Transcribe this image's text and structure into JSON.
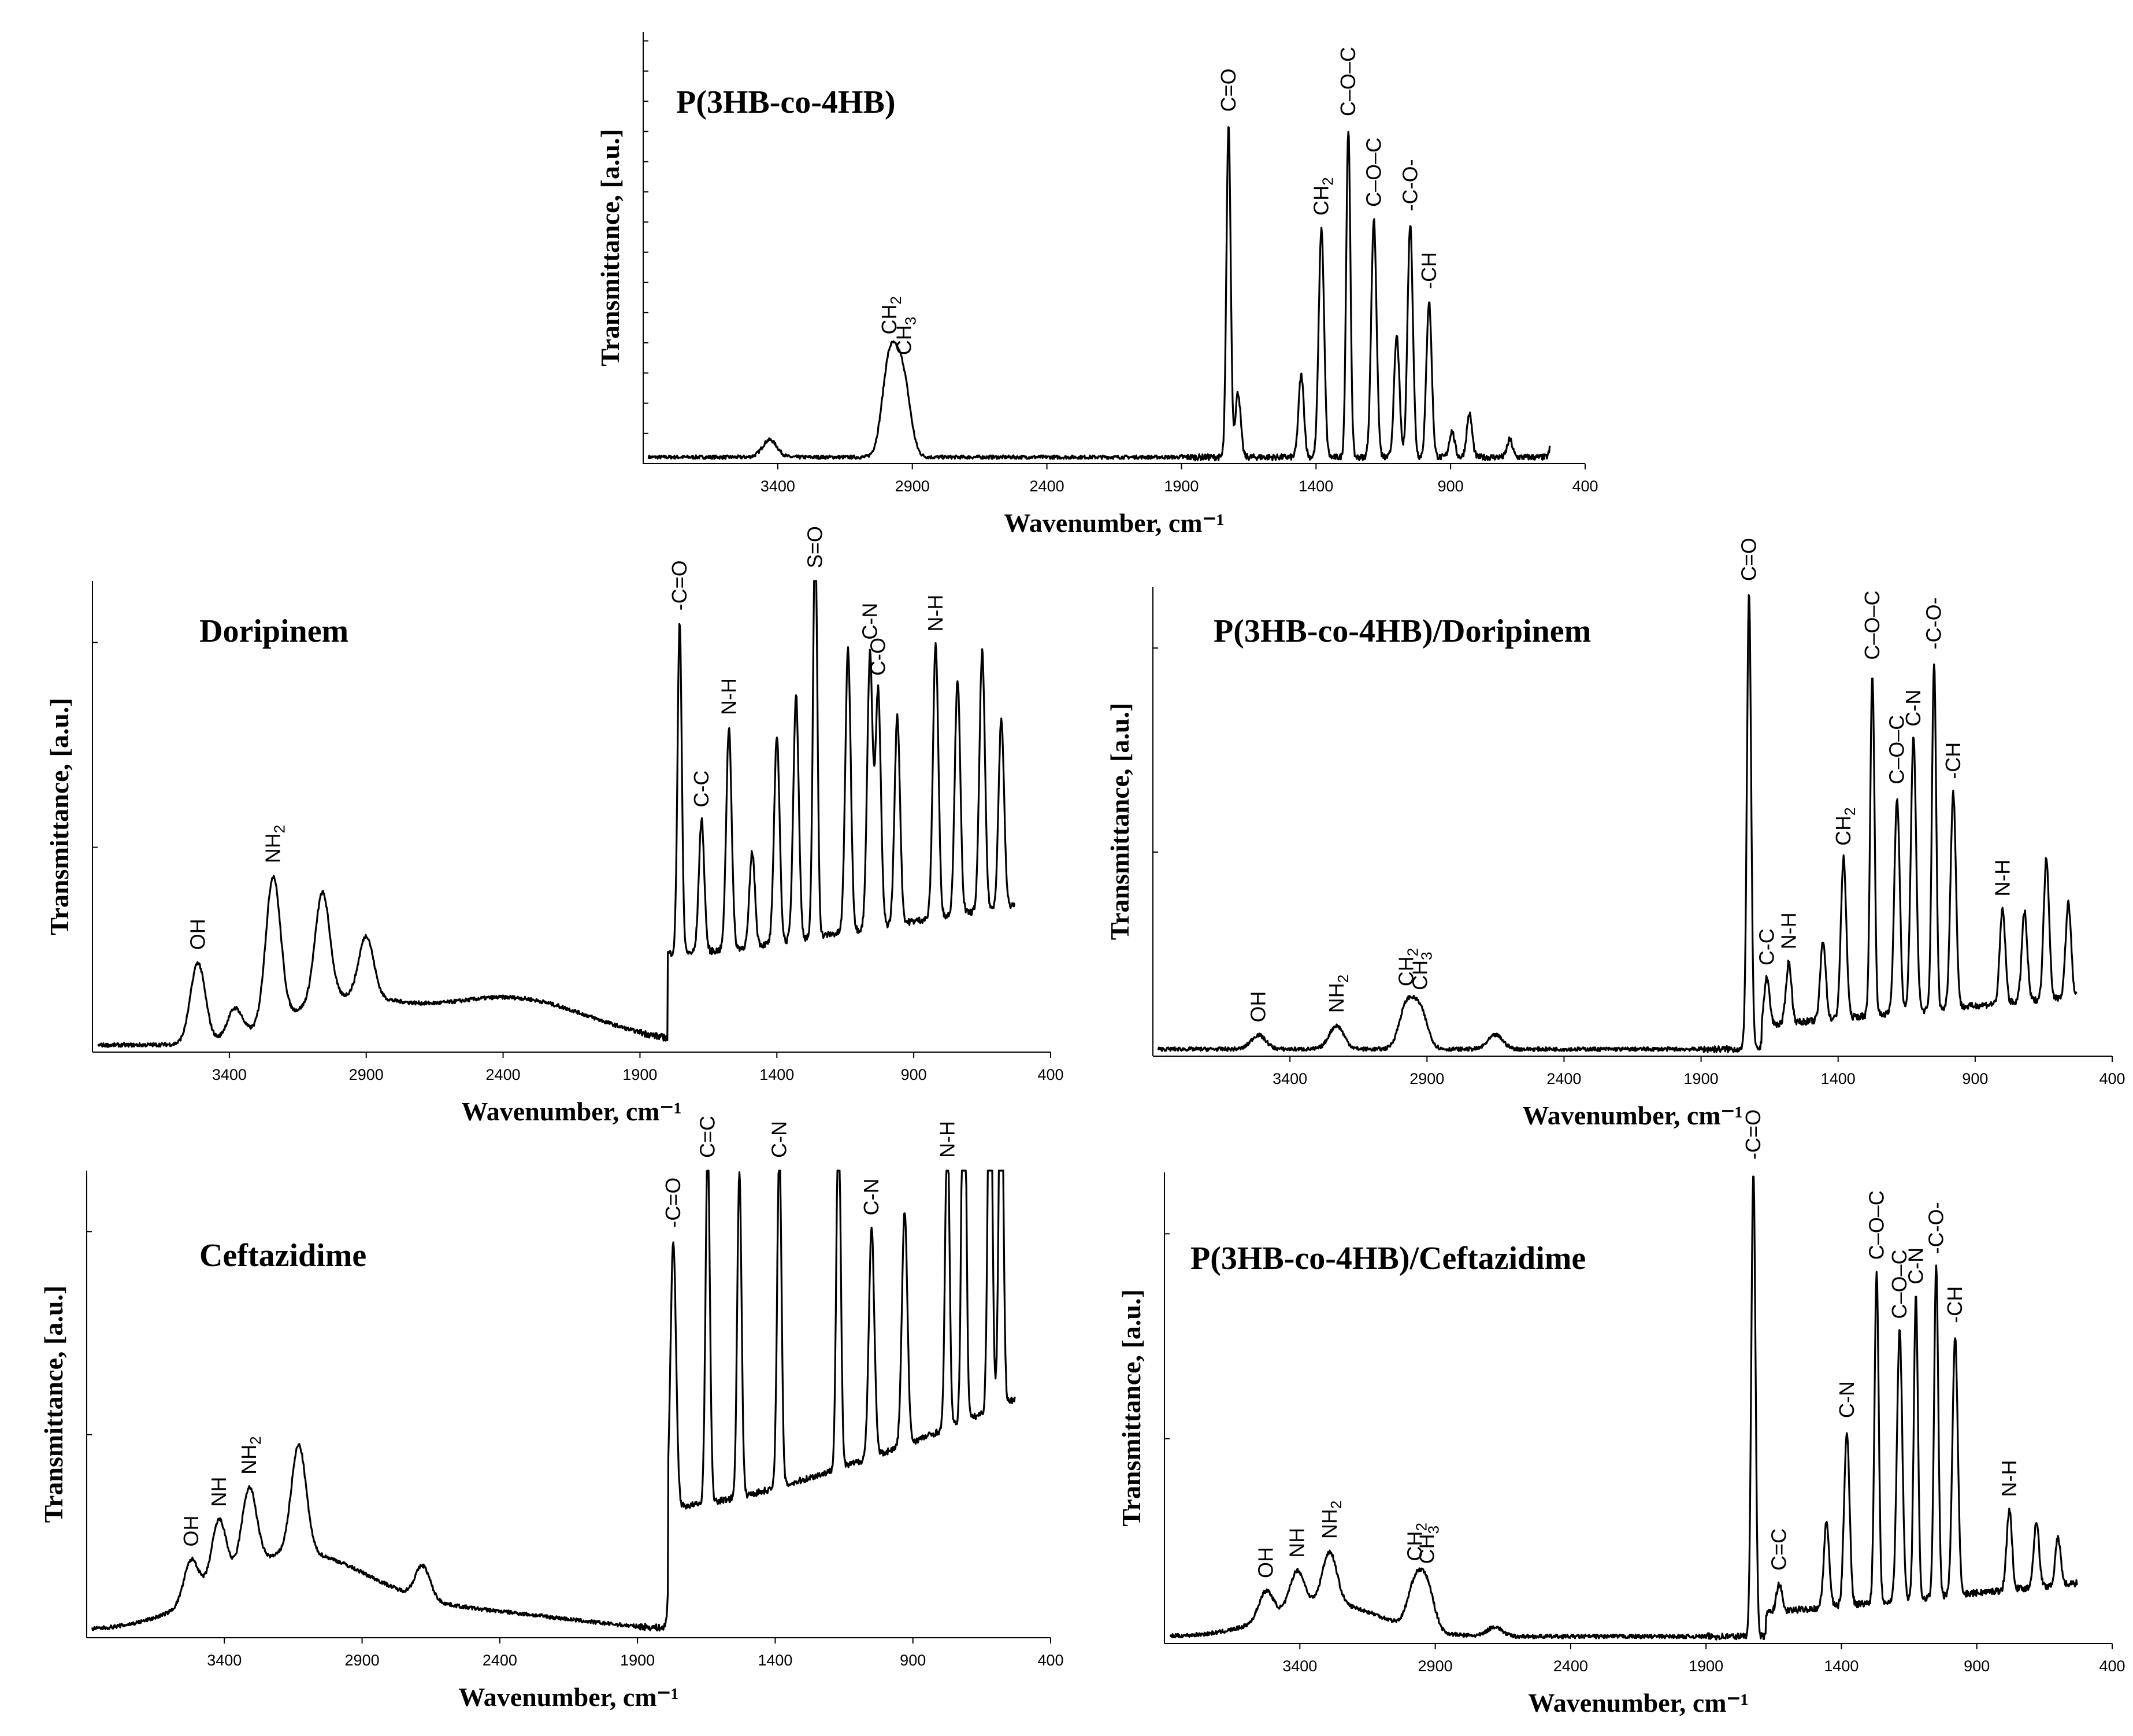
{
  "chart_data": [
    {
      "type": "line",
      "title": "P(3HB-co-4HB)",
      "xlabel": "Wavenumber, cm⁻¹",
      "ylabel": "Transmittance, [a.u.]",
      "xlim": [
        3900,
        400
      ],
      "ylim": [
        0,
        1
      ],
      "xticks": [
        "3400",
        "2900",
        "2400",
        "1900",
        "1400",
        "900",
        "400"
      ],
      "grid": false,
      "peaks": [
        {
          "x": 3430,
          "y": 0.04
        },
        {
          "x": 2985,
          "y": 0.22
        },
        {
          "x": 2935,
          "y": 0.18
        },
        {
          "x": 1725,
          "y": 0.77,
          "label": "C=O"
        },
        {
          "x": 1690,
          "y": 0.15
        },
        {
          "x": 1455,
          "y": 0.19
        },
        {
          "x": 1380,
          "y": 0.53,
          "label": "CH2"
        },
        {
          "x": 1280,
          "y": 0.76,
          "label": "C–O–C"
        },
        {
          "x": 1185,
          "y": 0.55,
          "label": "C–O–C"
        },
        {
          "x": 1100,
          "y": 0.28
        },
        {
          "x": 1050,
          "y": 0.54,
          "label": "-C-O-"
        },
        {
          "x": 980,
          "y": 0.36,
          "label": "-CH"
        },
        {
          "x": 895,
          "y": 0.06
        },
        {
          "x": 830,
          "y": 0.1
        },
        {
          "x": 680,
          "y": 0.04
        },
        {
          "x": 515,
          "y": 0.08
        }
      ],
      "labels": [
        {
          "text": "CH2",
          "x": 2985
        },
        {
          "text": "CH3",
          "x": 2930
        }
      ]
    },
    {
      "type": "line",
      "title": "Doripinem",
      "xlabel": "Wavenumber, cm⁻¹",
      "ylabel": "Transmittance, [a.u.]",
      "xlim": [
        3900,
        400
      ],
      "ylim": [
        0,
        1
      ],
      "xticks": [
        "3400",
        "2900",
        "2400",
        "1900",
        "1400",
        "900",
        "400"
      ],
      "grid": false,
      "peaks": [
        {
          "x": 3515,
          "y": 0.17,
          "label": "OH"
        },
        {
          "x": 3380,
          "y": 0.06
        },
        {
          "x": 3240,
          "y": 0.31,
          "label": "NH2"
        },
        {
          "x": 3060,
          "y": 0.23
        },
        {
          "x": 2900,
          "y": 0.13
        },
        {
          "x": 1755,
          "y": 0.7,
          "label": "-C=O"
        },
        {
          "x": 1675,
          "y": 0.28,
          "label": "C-C"
        },
        {
          "x": 1575,
          "y": 0.47,
          "label": "N-H"
        },
        {
          "x": 1490,
          "y": 0.2
        },
        {
          "x": 1400,
          "y": 0.44
        },
        {
          "x": 1330,
          "y": 0.52
        },
        {
          "x": 1260,
          "y": 0.89,
          "label": "S=O"
        },
        {
          "x": 1140,
          "y": 0.6
        },
        {
          "x": 1060,
          "y": 0.58,
          "label": "C-N"
        },
        {
          "x": 1030,
          "y": 0.5,
          "label": "C-O"
        },
        {
          "x": 960,
          "y": 0.44
        },
        {
          "x": 820,
          "y": 0.58,
          "label": "N-H"
        },
        {
          "x": 740,
          "y": 0.5
        },
        {
          "x": 650,
          "y": 0.55
        },
        {
          "x": 580,
          "y": 0.4
        }
      ]
    },
    {
      "type": "line",
      "title": "P(3HB-co-4HB)/Doripinem",
      "xlabel": "Wavenumber, cm⁻¹",
      "ylabel": "Transmittance, [a.u.]",
      "xlim": [
        3900,
        400
      ],
      "ylim": [
        0,
        1
      ],
      "xticks": [
        "3400",
        "2900",
        "2400",
        "1900",
        "1400",
        "900",
        "400"
      ],
      "grid": false,
      "peaks": [
        {
          "x": 3515,
          "y": 0.03,
          "label": "OH"
        },
        {
          "x": 3230,
          "y": 0.05,
          "label": "NH2"
        },
        {
          "x": 2975,
          "y": 0.09
        },
        {
          "x": 2925,
          "y": 0.08
        },
        {
          "x": 2650,
          "y": 0.03
        },
        {
          "x": 1725,
          "y": 0.97,
          "label": "C=O"
        },
        {
          "x": 1660,
          "y": 0.1,
          "label": "C-C"
        },
        {
          "x": 1580,
          "y": 0.13,
          "label": "N-H"
        },
        {
          "x": 1455,
          "y": 0.17
        },
        {
          "x": 1380,
          "y": 0.34,
          "label": "CH2"
        },
        {
          "x": 1275,
          "y": 0.73,
          "label": "C–O–C"
        },
        {
          "x": 1185,
          "y": 0.46,
          "label": "C–O–C"
        },
        {
          "x": 1125,
          "y": 0.58,
          "label": "C-N"
        },
        {
          "x": 1050,
          "y": 0.74,
          "label": "-C-O-"
        },
        {
          "x": 980,
          "y": 0.46,
          "label": "-CH"
        },
        {
          "x": 800,
          "y": 0.2,
          "label": "N-H"
        },
        {
          "x": 720,
          "y": 0.19
        },
        {
          "x": 640,
          "y": 0.3
        },
        {
          "x": 560,
          "y": 0.2
        }
      ],
      "labels": [
        {
          "text": "CH2",
          "x": 2975
        },
        {
          "text": "CH3",
          "x": 2925
        }
      ]
    },
    {
      "type": "line",
      "title": "Ceftazidime",
      "xlabel": "Wavenumber, cm⁻¹",
      "ylabel": "Transmittance, [a.u.]",
      "xlim": [
        3900,
        400
      ],
      "ylim": [
        0,
        1
      ],
      "xticks": [
        "3400",
        "2900",
        "2400",
        "1900",
        "1400",
        "900",
        "400"
      ],
      "grid": false,
      "peaks": [
        {
          "x": 3520,
          "y": 0.09,
          "label": "OH"
        },
        {
          "x": 3420,
          "y": 0.14,
          "label": "NH"
        },
        {
          "x": 3310,
          "y": 0.17,
          "label": "NH2"
        },
        {
          "x": 3130,
          "y": 0.23
        },
        {
          "x": 2680,
          "y": 0.07
        },
        {
          "x": 1770,
          "y": 0.57,
          "label": "-C=O"
        },
        {
          "x": 1645,
          "y": 0.77,
          "label": "C=C"
        },
        {
          "x": 1530,
          "y": 0.7
        },
        {
          "x": 1385,
          "y": 0.73,
          "label": "C-N"
        },
        {
          "x": 1170,
          "y": 0.78
        },
        {
          "x": 1050,
          "y": 0.49,
          "label": "C-N"
        },
        {
          "x": 930,
          "y": 0.5
        },
        {
          "x": 775,
          "y": 0.66,
          "label": "N-H"
        },
        {
          "x": 715,
          "y": 0.98
        },
        {
          "x": 620,
          "y": 0.9
        },
        {
          "x": 580,
          "y": 0.87
        }
      ]
    },
    {
      "type": "line",
      "title": "P(3HB-co-4HB)/Ceftazidime",
      "xlabel": "Wavenumber, cm⁻¹",
      "ylabel": "Transmittance, [a.u.]",
      "xlim": [
        3900,
        400
      ],
      "ylim": [
        0,
        1
      ],
      "xticks": [
        "3400",
        "2900",
        "2400",
        "1900",
        "1400",
        "900",
        "400"
      ],
      "grid": false,
      "peaks": [
        {
          "x": 3525,
          "y": 0.06,
          "label": "OH"
        },
        {
          "x": 3410,
          "y": 0.08,
          "label": "NH"
        },
        {
          "x": 3290,
          "y": 0.11,
          "label": "NH2"
        },
        {
          "x": 2975,
          "y": 0.09
        },
        {
          "x": 2930,
          "y": 0.09
        },
        {
          "x": 2680,
          "y": 0.02
        },
        {
          "x": 1725,
          "y": 0.99,
          "label": "-C=O"
        },
        {
          "x": 1630,
          "y": 0.06,
          "label": "C=C"
        },
        {
          "x": 1455,
          "y": 0.18
        },
        {
          "x": 1380,
          "y": 0.37,
          "label": "C-N"
        },
        {
          "x": 1270,
          "y": 0.7,
          "label": "C–O–C"
        },
        {
          "x": 1185,
          "y": 0.57,
          "label": "C–O–C"
        },
        {
          "x": 1125,
          "y": 0.64,
          "label": "C-N"
        },
        {
          "x": 1050,
          "y": 0.7,
          "label": "-C-O-"
        },
        {
          "x": 980,
          "y": 0.55,
          "label": "-CH"
        },
        {
          "x": 780,
          "y": 0.17,
          "label": "N-H"
        },
        {
          "x": 680,
          "y": 0.14
        },
        {
          "x": 600,
          "y": 0.1
        }
      ],
      "labels": [
        {
          "text": "CH2",
          "x": 2975
        },
        {
          "text": "CH3",
          "x": 2930
        }
      ]
    }
  ]
}
